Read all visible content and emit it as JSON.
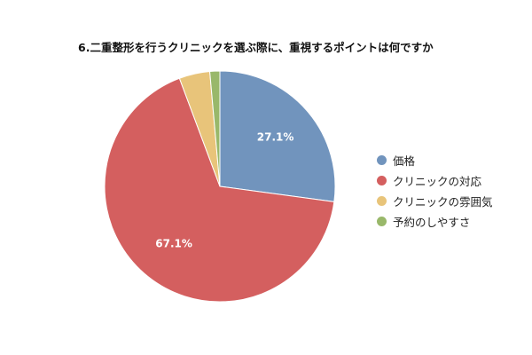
{
  "chart_data": {
    "type": "pie",
    "title": "6.二重整形を行うクリニックを選ぶ際に、重視するポイントは何ですか",
    "categories": [
      "価格",
      "クリニックの対応",
      "クリニックの雰囲気",
      "予約のしやすさ"
    ],
    "values": [
      27.1,
      67.1,
      4.3,
      1.4
    ],
    "data_labels": [
      "27.1%",
      "67.1%",
      "",
      ""
    ],
    "colors": [
      "#7194bd",
      "#d45f5f",
      "#e8c47a",
      "#99b86a"
    ],
    "legend_position": "right",
    "start_angle_deg": 0,
    "direction": "clockwise"
  }
}
